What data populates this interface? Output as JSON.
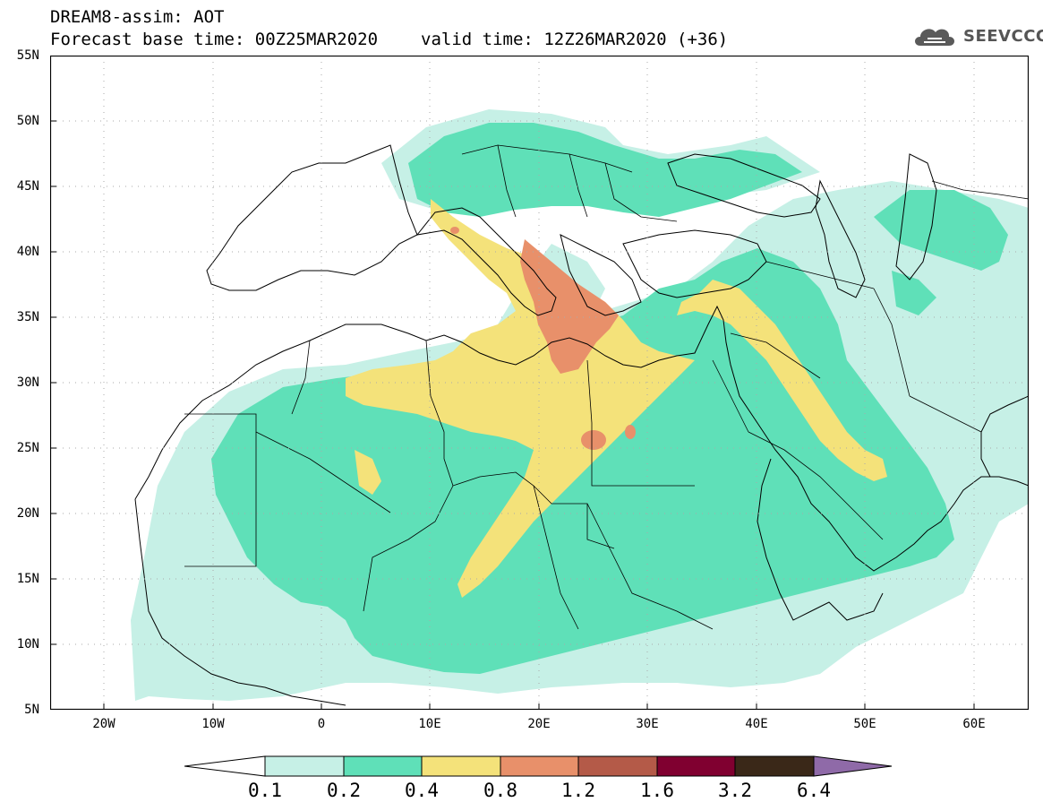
{
  "header": {
    "title": "DREAM8-assim: AOT",
    "base_time": "Forecast base time: 00Z25MAR2020",
    "valid_time": "valid time: 12Z26MAR2020 (+36)"
  },
  "logo": {
    "text": "SEEVCCC",
    "icon": "cloud-icon"
  },
  "map": {
    "lon_range": [
      -25,
      65
    ],
    "lat_range": [
      5,
      55
    ],
    "lat_labels": [
      "55N",
      "50N",
      "45N",
      "40N",
      "35N",
      "30N",
      "25N",
      "20N",
      "15N",
      "10N",
      "5N"
    ],
    "lon_labels": [
      "20W",
      "10W",
      "0",
      "10E",
      "20E",
      "30E",
      "40E",
      "50E",
      "60E"
    ]
  },
  "legend": {
    "labels": [
      "0.1",
      "0.2",
      "0.4",
      "0.8",
      "1.2",
      "1.6",
      "3.2",
      "6.4"
    ],
    "colors": [
      "#ffffff",
      "#c6f0e6",
      "#5fe0b8",
      "#f4e27a",
      "#e8906a",
      "#b45a48",
      "#800030",
      "#3a2818",
      "#8f6aa8"
    ]
  },
  "colors": {
    "level1": "#c6f0e6",
    "level2": "#5fe0b8",
    "level3": "#f4e27a",
    "level4": "#e8906a",
    "coastline": "#000000"
  }
}
